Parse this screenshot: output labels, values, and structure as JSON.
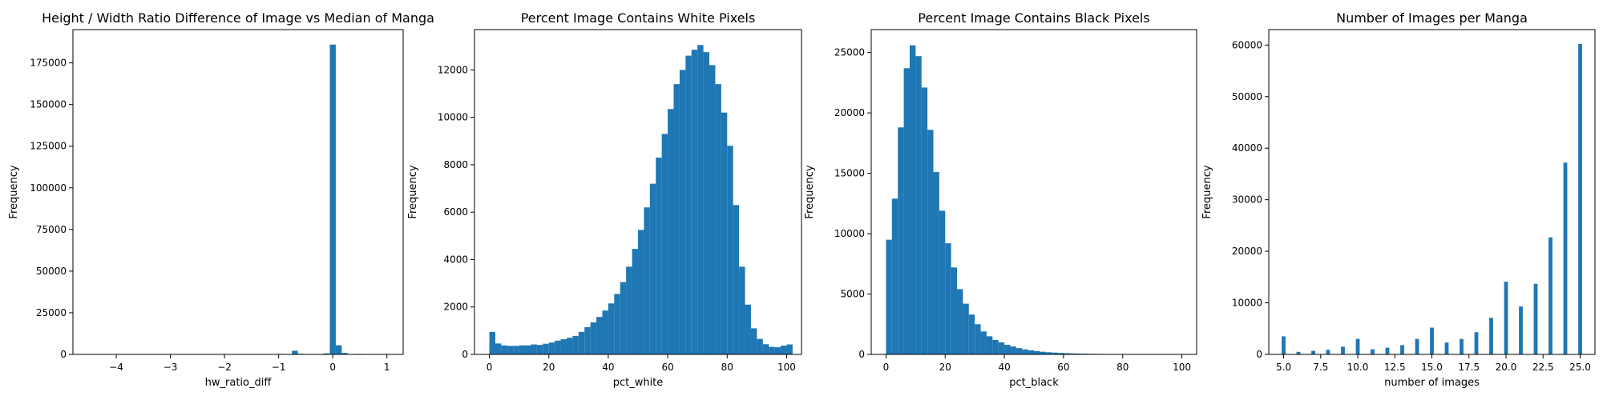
{
  "chart_data": [
    {
      "type": "bar",
      "title": "Height / Width Ratio Difference of Image vs Median of Manga",
      "xlabel": "hw_ratio_diff",
      "ylabel": "Frequency",
      "xlim": [
        -4.8,
        1.3
      ],
      "ylim": [
        0,
        195000
      ],
      "xticks": [
        -4,
        -3,
        -2,
        -1,
        0,
        1
      ],
      "xtick_labels": [
        "−4",
        "−3",
        "−2",
        "−1",
        "0",
        "1"
      ],
      "yticks": [
        0,
        25000,
        50000,
        75000,
        100000,
        125000,
        150000,
        175000
      ],
      "ytick_labels": [
        "0",
        "25000",
        "50000",
        "75000",
        "100000",
        "125000",
        "150000",
        "175000"
      ],
      "color": "#1f77b4",
      "bar_width": 0.11,
      "x": [
        -4.2,
        -3.5,
        -3.0,
        -2.5,
        -2.0,
        -1.5,
        -0.95,
        -0.7,
        -0.6,
        -0.12,
        0.0,
        0.11,
        0.22,
        0.5,
        1.0
      ],
      "values": [
        150,
        120,
        150,
        150,
        150,
        150,
        300,
        2200,
        400,
        600,
        186000,
        5500,
        900,
        300,
        200
      ]
    },
    {
      "type": "bar",
      "title": "Percent Image Contains White Pixels",
      "xlabel": "pct_white",
      "ylabel": "Frequency",
      "xlim": [
        -5,
        105
      ],
      "ylim": [
        0,
        13700
      ],
      "xticks": [
        0,
        20,
        40,
        60,
        80,
        100
      ],
      "xtick_labels": [
        "0",
        "20",
        "40",
        "60",
        "80",
        "100"
      ],
      "yticks": [
        0,
        2000,
        4000,
        6000,
        8000,
        10000,
        12000
      ],
      "ytick_labels": [
        "0",
        "2000",
        "4000",
        "6000",
        "8000",
        "10000",
        "12000"
      ],
      "color": "#1f77b4",
      "bin_start": 0,
      "bin_width": 2,
      "values": [
        950,
        460,
        380,
        360,
        360,
        380,
        380,
        420,
        400,
        450,
        500,
        580,
        640,
        700,
        780,
        950,
        1150,
        1350,
        1580,
        1850,
        2150,
        2550,
        3050,
        3700,
        4450,
        5250,
        6200,
        7200,
        8300,
        9300,
        10350,
        11400,
        12000,
        12600,
        12850,
        13050,
        12750,
        12200,
        11400,
        10200,
        8800,
        6300,
        3700,
        2100,
        1100,
        650,
        430,
        320,
        300,
        370,
        420
      ]
    },
    {
      "type": "bar",
      "title": "Percent Image Contains Black Pixels",
      "xlabel": "pct_black",
      "ylabel": "Frequency",
      "xlim": [
        -5,
        105
      ],
      "ylim": [
        0,
        26900
      ],
      "xticks": [
        0,
        20,
        40,
        60,
        80,
        100
      ],
      "xtick_labels": [
        "0",
        "20",
        "40",
        "60",
        "80",
        "100"
      ],
      "yticks": [
        0,
        5000,
        10000,
        15000,
        20000,
        25000
      ],
      "ytick_labels": [
        "0",
        "5000",
        "10000",
        "15000",
        "20000",
        "25000"
      ],
      "color": "#1f77b4",
      "bin_start": 0,
      "bin_width": 2,
      "values": [
        9500,
        12900,
        18800,
        23700,
        25600,
        24700,
        22100,
        18600,
        15100,
        11900,
        9200,
        7200,
        5400,
        4200,
        3300,
        2500,
        1900,
        1500,
        1200,
        1000,
        800,
        650,
        520,
        420,
        340,
        280,
        220,
        180,
        150,
        120,
        100,
        85,
        70,
        60,
        50,
        45,
        40,
        35,
        30,
        28,
        25,
        22,
        20,
        18,
        16,
        15,
        14,
        13,
        12,
        11
      ]
    },
    {
      "type": "bar",
      "title": "Number of Images per Manga",
      "xlabel": "number of images",
      "ylabel": "Frequency",
      "xlim": [
        4.0,
        26.0
      ],
      "ylim": [
        0,
        63000
      ],
      "xticks": [
        5.0,
        7.5,
        10.0,
        12.5,
        15.0,
        17.5,
        20.0,
        22.5,
        25.0
      ],
      "xtick_labels": [
        "5.0",
        "7.5",
        "10.0",
        "12.5",
        "15.0",
        "17.5",
        "20.0",
        "22.5",
        "25.0"
      ],
      "yticks": [
        0,
        10000,
        20000,
        30000,
        40000,
        50000,
        60000
      ],
      "ytick_labels": [
        "0",
        "10000",
        "20000",
        "30000",
        "40000",
        "50000",
        "60000"
      ],
      "color": "#1f77b4",
      "bar_width": 0.26,
      "x": [
        5,
        6,
        7,
        8,
        9,
        10,
        11,
        12,
        13,
        14,
        15,
        16,
        17,
        18,
        19,
        20,
        21,
        22,
        23,
        24,
        25
      ],
      "values": [
        3500,
        500,
        700,
        900,
        1500,
        3000,
        1000,
        1300,
        1800,
        3000,
        5200,
        2300,
        3000,
        4300,
        7100,
        14100,
        9300,
        13700,
        22700,
        37200,
        60200
      ]
    }
  ]
}
